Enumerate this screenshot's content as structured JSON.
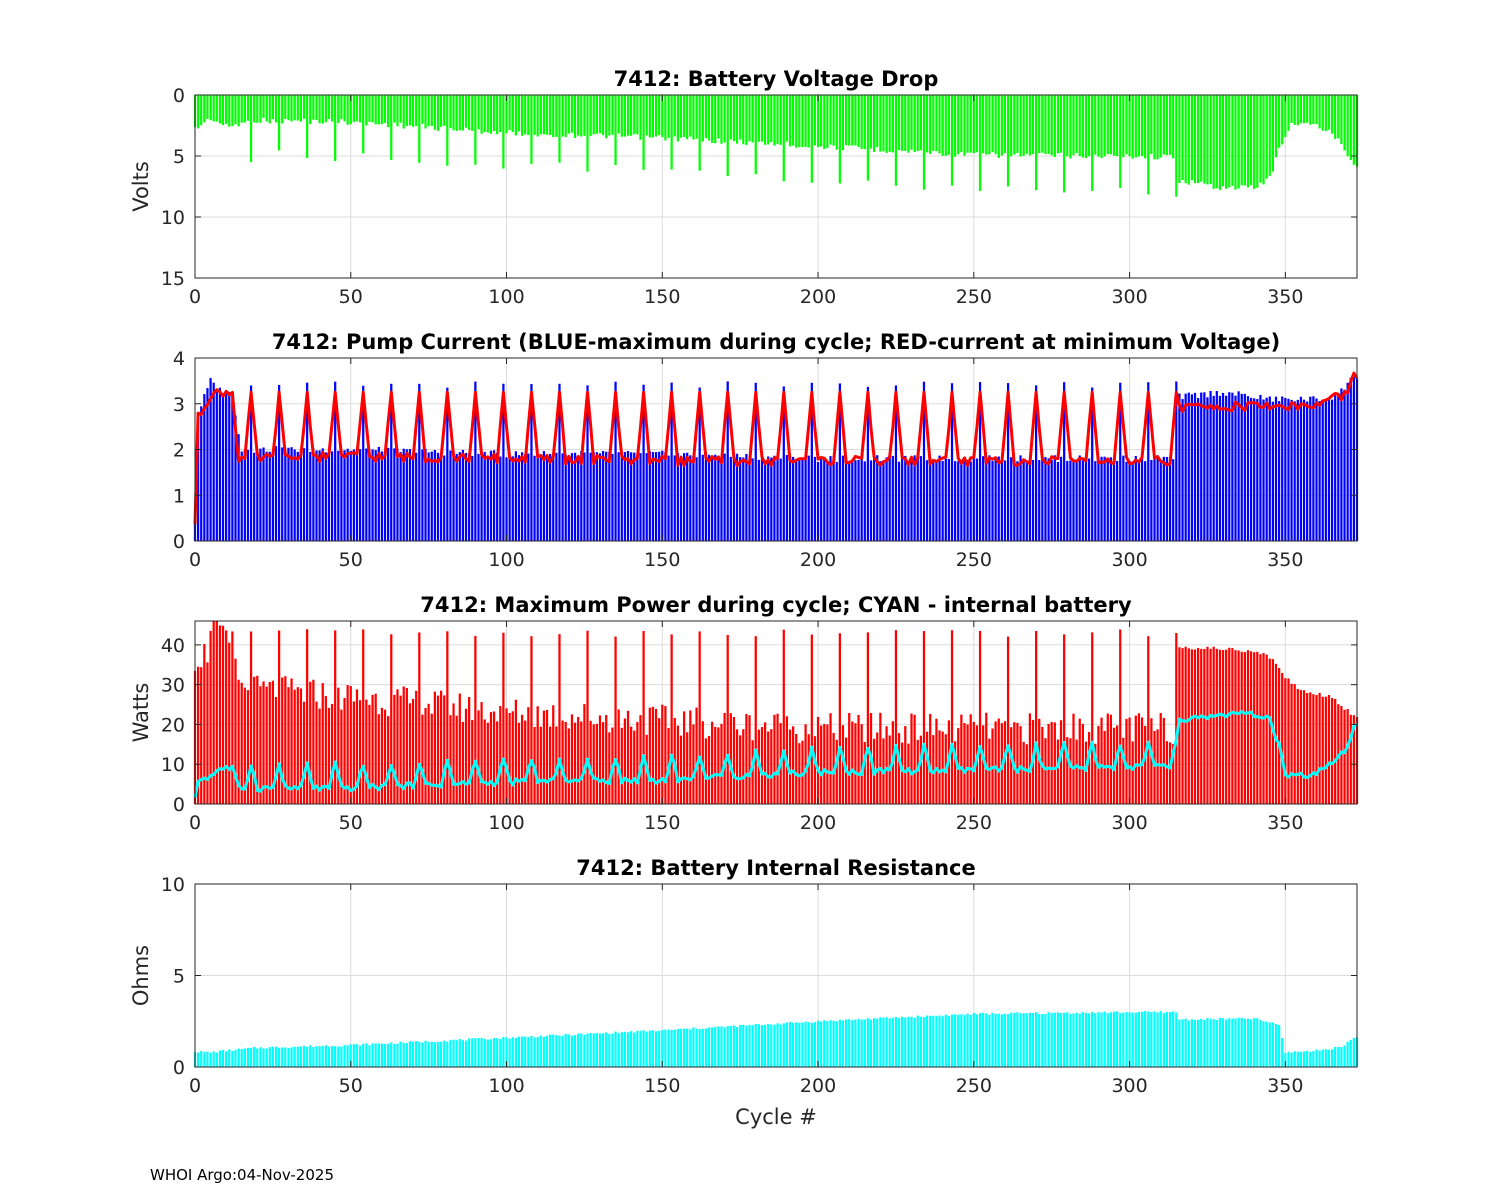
{
  "figure": {
    "footer": "WHOI Argo:04-Nov-2025",
    "xlabel": "Cycle #",
    "x_ticks": [
      0,
      50,
      100,
      150,
      200,
      250,
      300,
      350
    ],
    "x_range": [
      0,
      373
    ]
  },
  "chart_data": [
    {
      "id": "voltage",
      "type": "bar",
      "title": "7412: Battery Voltage Drop",
      "ylabel": "Volts",
      "ylim": [
        0,
        15
      ],
      "y_reversed": true,
      "y_ticks": [
        0,
        5,
        10,
        15
      ],
      "bar_color": "#00ff00",
      "base_keypoints": [
        [
          0,
          2.8
        ],
        [
          5,
          1.9
        ],
        [
          10,
          2.6
        ],
        [
          20,
          2.1
        ],
        [
          50,
          2.2
        ],
        [
          100,
          3.1
        ],
        [
          150,
          3.5
        ],
        [
          200,
          4.2
        ],
        [
          250,
          4.9
        ],
        [
          300,
          5.0
        ],
        [
          315,
          5.1
        ],
        [
          316,
          7.0
        ],
        [
          330,
          7.6
        ],
        [
          340,
          7.6
        ],
        [
          345,
          6.8
        ],
        [
          348,
          4.5
        ],
        [
          352,
          2.3
        ],
        [
          360,
          2.5
        ],
        [
          367,
          3.5
        ],
        [
          372,
          5.7
        ]
      ],
      "spike_period": 9,
      "spike_add": 2.5
    },
    {
      "id": "current",
      "type": "bar+line",
      "title": "7412: Pump Current (BLUE-maximum during cycle; RED-current at minimum Voltage)",
      "ylabel": "",
      "ylim": [
        0,
        4
      ],
      "y_ticks": [
        0,
        1,
        2,
        3,
        4
      ],
      "bar_color": "#0000ff",
      "line_color": "#ff0000",
      "bar_keypoints": [
        [
          0,
          0.5
        ],
        [
          1,
          2.8
        ],
        [
          5,
          3.5
        ],
        [
          8,
          3.3
        ],
        [
          12,
          3.2
        ],
        [
          15,
          2.0
        ],
        [
          50,
          2.0
        ],
        [
          100,
          1.9
        ],
        [
          150,
          1.9
        ],
        [
          200,
          1.8
        ],
        [
          315,
          1.8
        ],
        [
          316,
          3.15
        ],
        [
          330,
          3.25
        ],
        [
          345,
          3.1
        ],
        [
          362,
          3.1
        ],
        [
          367,
          3.2
        ],
        [
          372,
          3.6
        ]
      ],
      "line_keypoints": [
        [
          0,
          0.4
        ],
        [
          1,
          2.7
        ],
        [
          5,
          3.2
        ],
        [
          8,
          3.25
        ],
        [
          12,
          3.25
        ],
        [
          14,
          1.8
        ],
        [
          50,
          1.85
        ],
        [
          100,
          1.8
        ],
        [
          150,
          1.75
        ],
        [
          200,
          1.75
        ],
        [
          315,
          1.75
        ],
        [
          316,
          2.9
        ],
        [
          330,
          2.95
        ],
        [
          345,
          2.95
        ],
        [
          360,
          2.95
        ],
        [
          365,
          3.15
        ],
        [
          370,
          3.2
        ],
        [
          372,
          3.6
        ]
      ],
      "spike_period": 9,
      "spike_value": 3.25
    },
    {
      "id": "power",
      "type": "bar+line",
      "title": "7412: Maximum Power during cycle; CYAN - internal battery",
      "ylabel": "Watts",
      "ylim": [
        0,
        46
      ],
      "y_ticks": [
        0,
        10,
        20,
        30,
        40
      ],
      "bar_color": "#ff0000",
      "line_color": "#00ffff",
      "bar_keypoints": [
        [
          0,
          37
        ],
        [
          4,
          38
        ],
        [
          5,
          46
        ],
        [
          7,
          46
        ],
        [
          9,
          41
        ],
        [
          12,
          40
        ],
        [
          15,
          29
        ],
        [
          50,
          27
        ],
        [
          100,
          23
        ],
        [
          150,
          21
        ],
        [
          200,
          19
        ],
        [
          250,
          19
        ],
        [
          315,
          19
        ],
        [
          316,
          39.5
        ],
        [
          330,
          39
        ],
        [
          340,
          38.5
        ],
        [
          345,
          37
        ],
        [
          350,
          32
        ],
        [
          355,
          28.5
        ],
        [
          365,
          27
        ],
        [
          372,
          22
        ]
      ],
      "line_keypoints": [
        [
          0,
          1
        ],
        [
          1,
          6
        ],
        [
          5,
          7
        ],
        [
          8,
          9
        ],
        [
          12,
          9
        ],
        [
          14,
          4
        ],
        [
          50,
          4
        ],
        [
          100,
          5.5
        ],
        [
          150,
          6
        ],
        [
          200,
          8
        ],
        [
          250,
          8.5
        ],
        [
          315,
          9.5
        ],
        [
          316,
          21
        ],
        [
          330,
          22.5
        ],
        [
          340,
          22.5
        ],
        [
          345,
          21
        ],
        [
          348,
          15
        ],
        [
          350,
          7
        ],
        [
          358,
          7
        ],
        [
          365,
          10
        ],
        [
          370,
          14
        ],
        [
          372,
          19.5
        ]
      ],
      "spike_period": 9,
      "bar_spike_value": 42,
      "line_spike_add": 6
    },
    {
      "id": "resistance",
      "type": "bar",
      "title": "7412: Battery Internal Resistance",
      "ylabel": "Ohms",
      "ylim": [
        0,
        10
      ],
      "y_ticks": [
        0,
        5,
        10
      ],
      "bar_color": "#00ffff",
      "bar_keypoints": [
        [
          0,
          0.85
        ],
        [
          5,
          0.8
        ],
        [
          10,
          0.9
        ],
        [
          20,
          1.05
        ],
        [
          50,
          1.2
        ],
        [
          100,
          1.6
        ],
        [
          150,
          2.0
        ],
        [
          200,
          2.5
        ],
        [
          250,
          2.9
        ],
        [
          300,
          3.0
        ],
        [
          315,
          3.0
        ],
        [
          316,
          2.6
        ],
        [
          340,
          2.65
        ],
        [
          348,
          2.3
        ],
        [
          350,
          0.8
        ],
        [
          360,
          0.9
        ],
        [
          368,
          1.1
        ],
        [
          372,
          1.6
        ]
      ]
    }
  ]
}
